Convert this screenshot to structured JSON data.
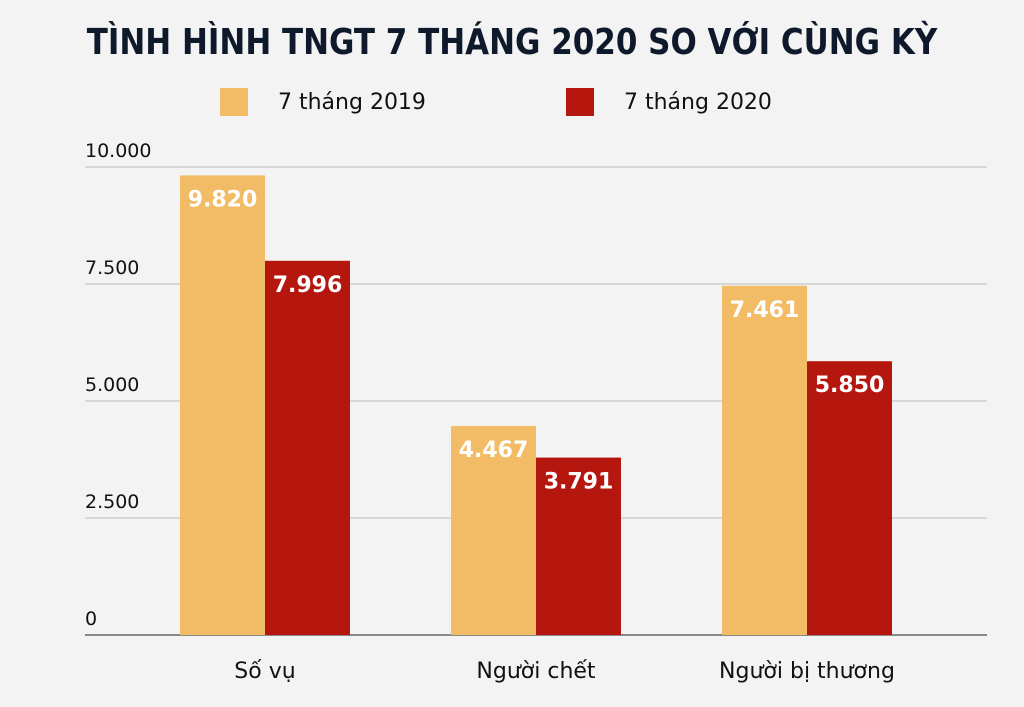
{
  "chart_data": {
    "type": "bar",
    "title": "TÌNH HÌNH TNGT 7 THÁNG 2020 SO VỚI CÙNG KỲ",
    "categories": [
      "Số vụ",
      "Người chết",
      "Người bị thương"
    ],
    "series": [
      {
        "name": "7 tháng 2019",
        "color": "#f2bb66",
        "values": [
          9820,
          4467,
          7461
        ],
        "labels": [
          "9.820",
          "4.467",
          "7.461"
        ]
      },
      {
        "name": "7 tháng 2020",
        "color": "#b5170f",
        "values": [
          7996,
          3791,
          5850
        ],
        "labels": [
          "7.996",
          "3.791",
          "5.850"
        ]
      }
    ],
    "ylim": [
      0,
      10000
    ],
    "yticks": [
      0,
      2500,
      5000,
      7500,
      10000
    ],
    "ytick_labels": [
      "0",
      "2.500",
      "5.000",
      "7.500",
      "10.000"
    ],
    "grid": true,
    "legend": "top",
    "xlabel": "",
    "ylabel": ""
  }
}
